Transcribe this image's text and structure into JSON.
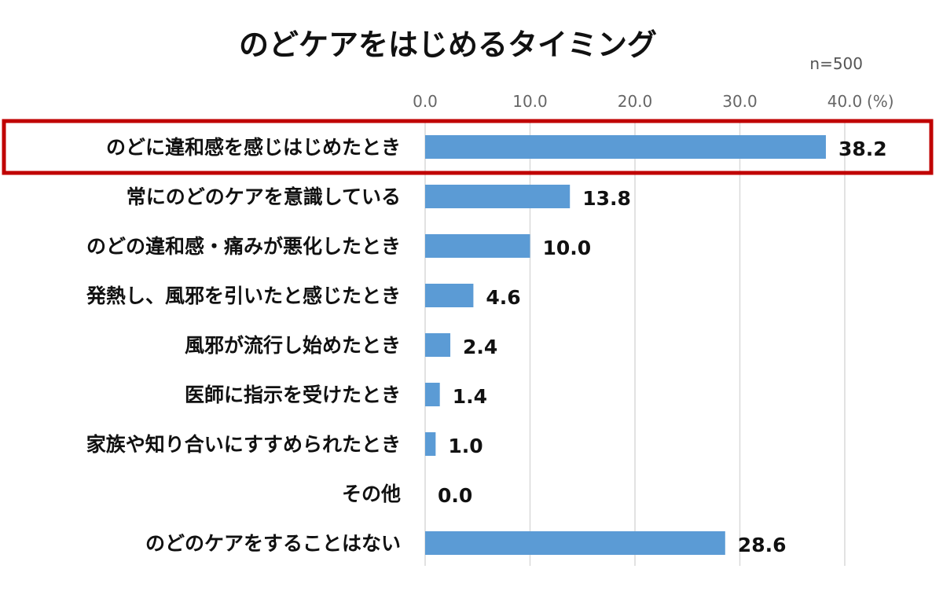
{
  "chart_data": {
    "type": "bar",
    "orientation": "horizontal",
    "title": "のどケアをはじめるタイミング",
    "sample_size": "n=500",
    "unit_label": "(%)",
    "xlim": [
      0,
      40
    ],
    "ticks": [
      0,
      10,
      20,
      30,
      40
    ],
    "tick_labels": [
      "0.0",
      "10.0",
      "20.0",
      "30.0",
      "40.0"
    ],
    "grid": true,
    "categories": [
      "のどに違和感を感じはじめたとき",
      "常にのどのケアを意識している",
      "のどの違和感・痛みが悪化したとき",
      "発熱し、風邪を引いたと感じたとき",
      "風邪が流行し始めたとき",
      "医師に指示を受けたとき",
      "家族や知り合いにすすめられたとき",
      "その他",
      "のどのケアをすることはない"
    ],
    "values": [
      38.2,
      13.8,
      10.0,
      4.6,
      2.4,
      1.4,
      1.0,
      0.0,
      28.6
    ],
    "value_labels": [
      "38.2",
      "13.8",
      "10.0",
      "4.6",
      "2.4",
      "1.4",
      "1.0",
      "0.0",
      "28.6"
    ],
    "highlighted_index": 0,
    "bar_color": "#5b9bd5",
    "highlight_color": "#c00000"
  }
}
